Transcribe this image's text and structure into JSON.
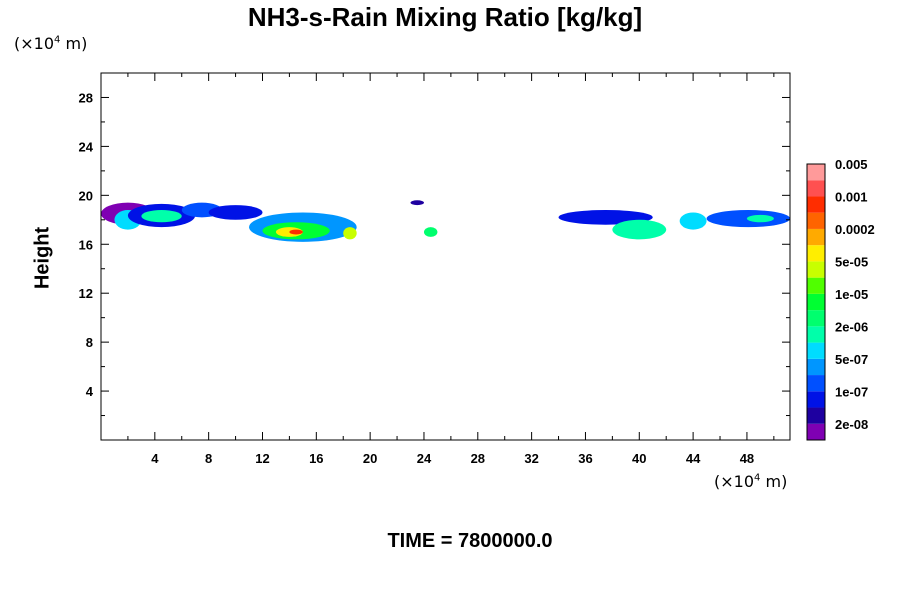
{
  "chart_data": {
    "type": "heatmap",
    "title": "NH3-s-Rain Mixing Ratio [kg/kg]",
    "ylabel": "Height",
    "x_unit_base": "(×10",
    "x_unit_exp": "4",
    "x_unit_end": " m)",
    "y_unit_base": "(×10",
    "y_unit_exp": "4",
    "y_unit_end": " m)",
    "xlim": [
      0,
      51.2
    ],
    "ylim": [
      0,
      30
    ],
    "x_ticks": [
      4,
      8,
      12,
      16,
      20,
      24,
      28,
      32,
      36,
      40,
      44,
      48
    ],
    "y_ticks": [
      4,
      8,
      12,
      16,
      20,
      24,
      28
    ],
    "colorbar": {
      "colors": [
        "#7f00b3",
        "#1e00a0",
        "#0012e6",
        "#0050ff",
        "#0096ff",
        "#00dcff",
        "#00ffaa",
        "#00ff6e",
        "#00ff32",
        "#50ff00",
        "#c8ff00",
        "#ffee00",
        "#ffaa00",
        "#ff6400",
        "#ff2d00",
        "#ff5050",
        "#ff9a9a"
      ],
      "labels": [
        "2e-08",
        "1e-07",
        "5e-07",
        "2e-06",
        "1e-05",
        "5e-05",
        "0.0002",
        "0.001",
        "0.005"
      ]
    },
    "field": [
      {
        "x": [
          0,
          4
        ],
        "y": [
          17.6,
          19.4
        ],
        "level": 0
      },
      {
        "x": [
          1,
          3
        ],
        "y": [
          17.2,
          18.8
        ],
        "level": 5
      },
      {
        "x": [
          2,
          7
        ],
        "y": [
          17.4,
          19.3
        ],
        "level": 2
      },
      {
        "x": [
          3,
          6
        ],
        "y": [
          17.8,
          18.8
        ],
        "level": 6
      },
      {
        "x": [
          6,
          9
        ],
        "y": [
          18.2,
          19.4
        ],
        "level": 3
      },
      {
        "x": [
          8,
          12
        ],
        "y": [
          18.0,
          19.2
        ],
        "level": 2
      },
      {
        "x": [
          11,
          19
        ],
        "y": [
          16.2,
          18.6
        ],
        "level": 4
      },
      {
        "x": [
          12,
          17
        ],
        "y": [
          16.4,
          17.8
        ],
        "level": 8
      },
      {
        "x": [
          13,
          15
        ],
        "y": [
          16.6,
          17.4
        ],
        "level": 11
      },
      {
        "x": [
          14,
          15
        ],
        "y": [
          16.8,
          17.2
        ],
        "level": 14
      },
      {
        "x": [
          18,
          19
        ],
        "y": [
          16.4,
          17.4
        ],
        "level": 10
      },
      {
        "x": [
          23,
          24
        ],
        "y": [
          19.2,
          19.6
        ],
        "level": 1
      },
      {
        "x": [
          24,
          25
        ],
        "y": [
          16.6,
          17.4
        ],
        "level": 7
      },
      {
        "x": [
          34,
          41
        ],
        "y": [
          17.6,
          18.8
        ],
        "level": 2
      },
      {
        "x": [
          38,
          42
        ],
        "y": [
          16.4,
          18.0
        ],
        "level": 6
      },
      {
        "x": [
          43,
          45
        ],
        "y": [
          17.2,
          18.6
        ],
        "level": 5
      },
      {
        "x": [
          45,
          51.2
        ],
        "y": [
          17.4,
          18.8
        ],
        "level": 3
      },
      {
        "x": [
          48,
          50
        ],
        "y": [
          17.8,
          18.4
        ],
        "level": 6
      }
    ]
  },
  "time_label": "TIME = 7800000.0"
}
